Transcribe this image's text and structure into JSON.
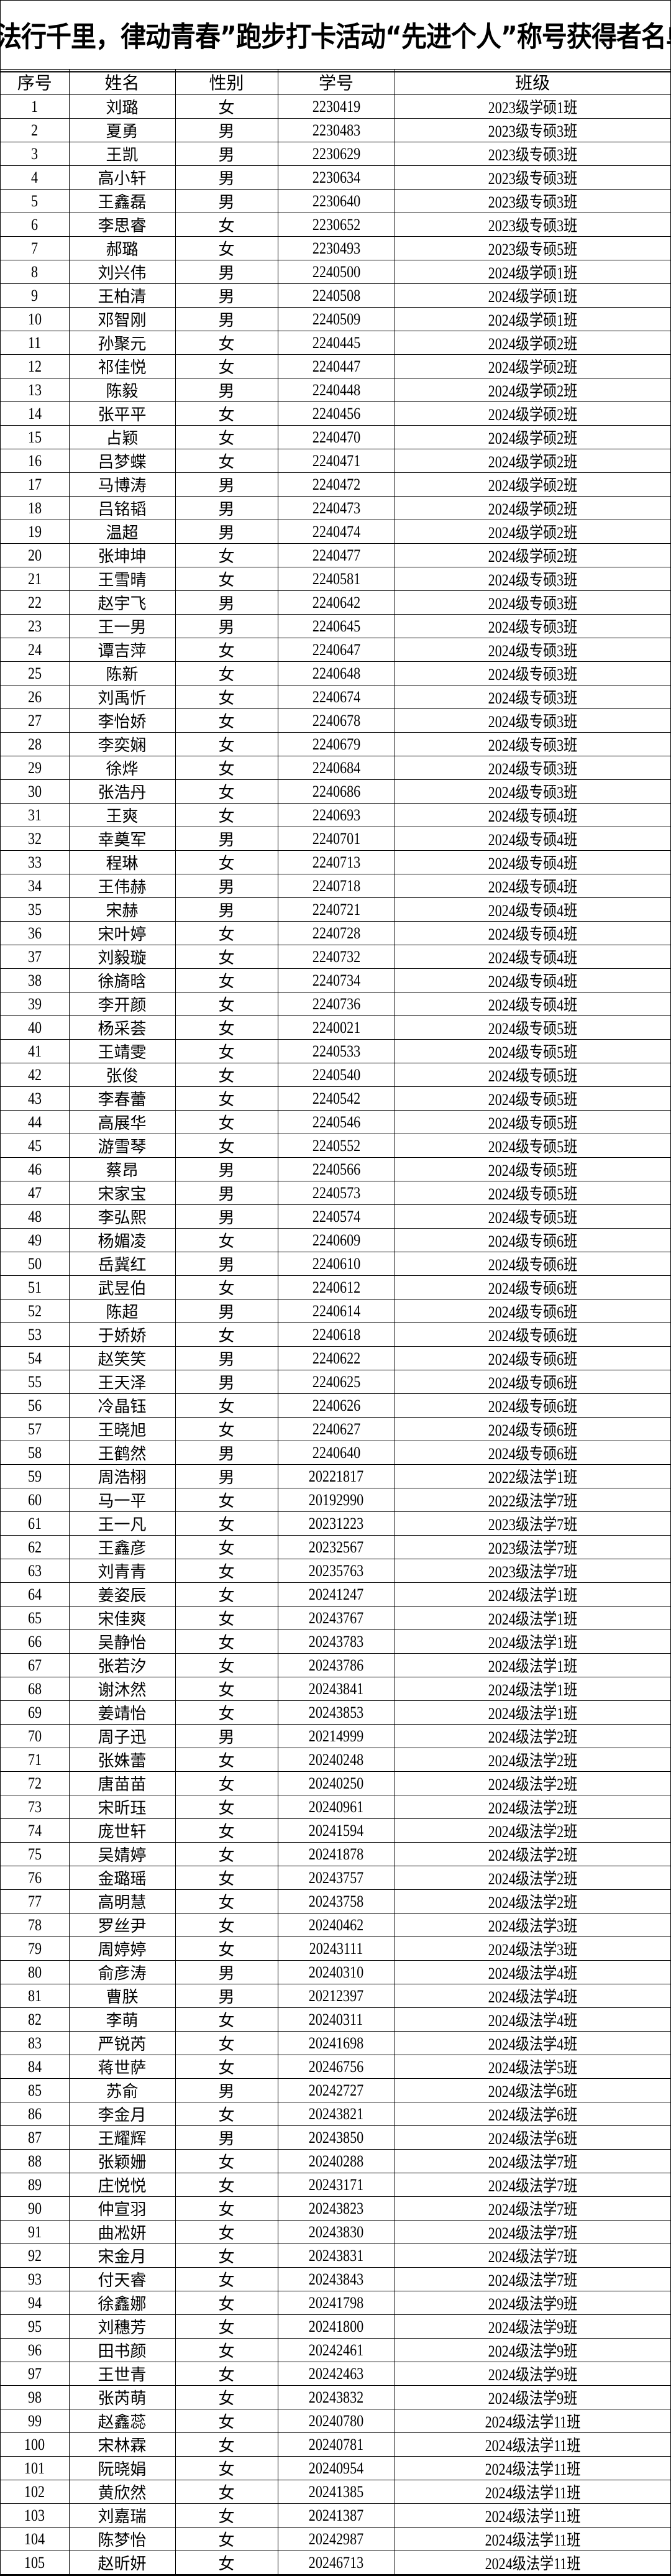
{
  "title": "“法行千里，律动青春”跑步打卡活动“先进个人”称号获得者名单",
  "columns": [
    "序号",
    "姓名",
    "性别",
    "学号",
    "班级"
  ],
  "rows": [
    [
      "1",
      "刘璐",
      "女",
      "2230419",
      "2023级学硕1班"
    ],
    [
      "2",
      "夏勇",
      "男",
      "2230483",
      "2023级专硕3班"
    ],
    [
      "3",
      "王凯",
      "男",
      "2230629",
      "2023级专硕3班"
    ],
    [
      "4",
      "高小轩",
      "男",
      "2230634",
      "2023级专硕3班"
    ],
    [
      "5",
      "王鑫磊",
      "男",
      "2230640",
      "2023级专硕3班"
    ],
    [
      "6",
      "李思睿",
      "女",
      "2230652",
      "2023级专硕3班"
    ],
    [
      "7",
      "郝璐",
      "女",
      "2230493",
      "2023级专硕5班"
    ],
    [
      "8",
      "刘兴伟",
      "男",
      "2240500",
      "2024级学硕1班"
    ],
    [
      "9",
      "王柏清",
      "男",
      "2240508",
      "2024级学硕1班"
    ],
    [
      "10",
      "邓智刚",
      "男",
      "2240509",
      "2024级学硕1班"
    ],
    [
      "11",
      "孙聚元",
      "女",
      "2240445",
      "2024级学硕2班"
    ],
    [
      "12",
      "祁佳悦",
      "女",
      "2240447",
      "2024级学硕2班"
    ],
    [
      "13",
      "陈毅",
      "男",
      "2240448",
      "2024级学硕2班"
    ],
    [
      "14",
      "张平平",
      "女",
      "2240456",
      "2024级学硕2班"
    ],
    [
      "15",
      "占颖",
      "女",
      "2240470",
      "2024级学硕2班"
    ],
    [
      "16",
      "吕梦蝶",
      "女",
      "2240471",
      "2024级学硕2班"
    ],
    [
      "17",
      "马博涛",
      "男",
      "2240472",
      "2024级学硕2班"
    ],
    [
      "18",
      "吕铭韬",
      "男",
      "2240473",
      "2024级学硕2班"
    ],
    [
      "19",
      "温超",
      "男",
      "2240474",
      "2024级学硕2班"
    ],
    [
      "20",
      "张坤坤",
      "女",
      "2240477",
      "2024级学硕2班"
    ],
    [
      "21",
      "王雪晴",
      "女",
      "2240581",
      "2024级专硕3班"
    ],
    [
      "22",
      "赵宇飞",
      "男",
      "2240642",
      "2024级专硕3班"
    ],
    [
      "23",
      "王一男",
      "男",
      "2240645",
      "2024级专硕3班"
    ],
    [
      "24",
      "谭吉萍",
      "女",
      "2240647",
      "2024级专硕3班"
    ],
    [
      "25",
      "陈新",
      "女",
      "2240648",
      "2024级专硕3班"
    ],
    [
      "26",
      "刘禹忻",
      "女",
      "2240674",
      "2024级专硕3班"
    ],
    [
      "27",
      "李怡娇",
      "女",
      "2240678",
      "2024级专硕3班"
    ],
    [
      "28",
      "李奕娴",
      "女",
      "2240679",
      "2024级专硕3班"
    ],
    [
      "29",
      "徐烨",
      "女",
      "2240684",
      "2024级专硕3班"
    ],
    [
      "30",
      "张浩丹",
      "女",
      "2240686",
      "2024级专硕3班"
    ],
    [
      "31",
      "王爽",
      "女",
      "2240693",
      "2024级专硕4班"
    ],
    [
      "32",
      "幸奠军",
      "男",
      "2240701",
      "2024级专硕4班"
    ],
    [
      "33",
      "程琳",
      "女",
      "2240713",
      "2024级专硕4班"
    ],
    [
      "34",
      "王伟赫",
      "男",
      "2240718",
      "2024级专硕4班"
    ],
    [
      "35",
      "宋赫",
      "男",
      "2240721",
      "2024级专硕4班"
    ],
    [
      "36",
      "宋叶婷",
      "女",
      "2240728",
      "2024级专硕4班"
    ],
    [
      "37",
      "刘毅璇",
      "女",
      "2240732",
      "2024级专硕4班"
    ],
    [
      "38",
      "徐旖晗",
      "女",
      "2240734",
      "2024级专硕4班"
    ],
    [
      "39",
      "李开颜",
      "女",
      "2240736",
      "2024级专硕4班"
    ],
    [
      "40",
      "杨采荟",
      "女",
      "2240021",
      "2024级专硕5班"
    ],
    [
      "41",
      "王靖雯",
      "女",
      "2240533",
      "2024级专硕5班"
    ],
    [
      "42",
      "张俊",
      "女",
      "2240540",
      "2024级专硕5班"
    ],
    [
      "43",
      "李春蕾",
      "女",
      "2240542",
      "2024级专硕5班"
    ],
    [
      "44",
      "高展华",
      "女",
      "2240546",
      "2024级专硕5班"
    ],
    [
      "45",
      "游雪琴",
      "女",
      "2240552",
      "2024级专硕5班"
    ],
    [
      "46",
      "蔡昂",
      "男",
      "2240566",
      "2024级专硕5班"
    ],
    [
      "47",
      "宋家宝",
      "男",
      "2240573",
      "2024级专硕5班"
    ],
    [
      "48",
      "李弘熙",
      "男",
      "2240574",
      "2024级专硕5班"
    ],
    [
      "49",
      "杨媚凌",
      "女",
      "2240609",
      "2024级专硕6班"
    ],
    [
      "50",
      "岳冀红",
      "男",
      "2240610",
      "2024级专硕6班"
    ],
    [
      "51",
      "武昱伯",
      "女",
      "2240612",
      "2024级专硕6班"
    ],
    [
      "52",
      "陈超",
      "男",
      "2240614",
      "2024级专硕6班"
    ],
    [
      "53",
      "于娇娇",
      "女",
      "2240618",
      "2024级专硕6班"
    ],
    [
      "54",
      "赵笑笑",
      "男",
      "2240622",
      "2024级专硕6班"
    ],
    [
      "55",
      "王天泽",
      "男",
      "2240625",
      "2024级专硕6班"
    ],
    [
      "56",
      "冷晶钰",
      "女",
      "2240626",
      "2024级专硕6班"
    ],
    [
      "57",
      "王晓旭",
      "女",
      "2240627",
      "2024级专硕6班"
    ],
    [
      "58",
      "王鹤然",
      "男",
      "2240640",
      "2024级专硕6班"
    ],
    [
      "59",
      "周浩栩",
      "男",
      "20221817",
      "2022级法学1班"
    ],
    [
      "60",
      "马一平",
      "女",
      "20192990",
      "2022级法学7班"
    ],
    [
      "61",
      "王一凡",
      "女",
      "20231223",
      "2023级法学7班"
    ],
    [
      "62",
      "王鑫彦",
      "女",
      "20232567",
      "2023级法学7班"
    ],
    [
      "63",
      "刘青青",
      "女",
      "20235763",
      "2023级法学7班"
    ],
    [
      "64",
      "姜姿辰",
      "女",
      "20241247",
      "2024级法学1班"
    ],
    [
      "65",
      "宋佳爽",
      "女",
      "20243767",
      "2024级法学1班"
    ],
    [
      "66",
      "吴静怡",
      "女",
      "20243783",
      "2024级法学1班"
    ],
    [
      "67",
      "张若汐",
      "女",
      "20243786",
      "2024级法学1班"
    ],
    [
      "68",
      "谢沐然",
      "女",
      "20243841",
      "2024级法学1班"
    ],
    [
      "69",
      "姜靖怡",
      "女",
      "20243853",
      "2024级法学1班"
    ],
    [
      "70",
      "周子迅",
      "男",
      "20214999",
      "2024级法学2班"
    ],
    [
      "71",
      "张姝蕾",
      "女",
      "20240248",
      "2024级法学2班"
    ],
    [
      "72",
      "唐苗苗",
      "女",
      "20240250",
      "2024级法学2班"
    ],
    [
      "73",
      "宋昕珏",
      "女",
      "20240961",
      "2024级法学2班"
    ],
    [
      "74",
      "庞世轩",
      "女",
      "20241594",
      "2024级法学2班"
    ],
    [
      "75",
      "吴婧婷",
      "女",
      "20241878",
      "2024级法学2班"
    ],
    [
      "76",
      "金璐瑶",
      "女",
      "20243757",
      "2024级法学2班"
    ],
    [
      "77",
      "高明慧",
      "女",
      "20243758",
      "2024级法学2班"
    ],
    [
      "78",
      "罗丝尹",
      "女",
      "20240462",
      "2024级法学3班"
    ],
    [
      "79",
      "周婷婷",
      "女",
      "20243111",
      "2024级法学3班"
    ],
    [
      "80",
      "俞彦涛",
      "男",
      "20240310",
      "2024级法学4班"
    ],
    [
      "81",
      "曹朕",
      "男",
      "20212397",
      "2024级法学4班"
    ],
    [
      "82",
      "李萌",
      "女",
      "20240311",
      "2024级法学4班"
    ],
    [
      "83",
      "严锐芮",
      "女",
      "20241698",
      "2024级法学4班"
    ],
    [
      "84",
      "蒋世萨",
      "女",
      "20246756",
      "2024级法学5班"
    ],
    [
      "85",
      "苏俞",
      "男",
      "20242727",
      "2024级法学6班"
    ],
    [
      "86",
      "李金月",
      "女",
      "20243821",
      "2024级法学6班"
    ],
    [
      "87",
      "王耀辉",
      "男",
      "20243850",
      "2024级法学6班"
    ],
    [
      "88",
      "张颖姗",
      "女",
      "20240288",
      "2024级法学7班"
    ],
    [
      "89",
      "庄悦悦",
      "女",
      "20243171",
      "2024级法学7班"
    ],
    [
      "90",
      "仲宣羽",
      "女",
      "20243823",
      "2024级法学7班"
    ],
    [
      "91",
      "曲凇妍",
      "女",
      "20243830",
      "2024级法学7班"
    ],
    [
      "92",
      "宋金月",
      "女",
      "20243831",
      "2024级法学7班"
    ],
    [
      "93",
      "付天睿",
      "女",
      "20243843",
      "2024级法学7班"
    ],
    [
      "94",
      "徐鑫娜",
      "女",
      "20241798",
      "2024级法学9班"
    ],
    [
      "95",
      "刘穗芳",
      "女",
      "20241800",
      "2024级法学9班"
    ],
    [
      "96",
      "田书颜",
      "女",
      "20242461",
      "2024级法学9班"
    ],
    [
      "97",
      "王世青",
      "女",
      "20242463",
      "2024级法学9班"
    ],
    [
      "98",
      "张芮萌",
      "女",
      "20243832",
      "2024级法学9班"
    ],
    [
      "99",
      "赵鑫蕊",
      "女",
      "20240780",
      "2024级法学11班"
    ],
    [
      "100",
      "宋林霖",
      "女",
      "20240781",
      "2024级法学11班"
    ],
    [
      "101",
      "阮晓娟",
      "女",
      "20240954",
      "2024级法学11班"
    ],
    [
      "102",
      "黄欣然",
      "女",
      "20241385",
      "2024级法学11班"
    ],
    [
      "103",
      "刘嘉瑞",
      "女",
      "20241387",
      "2024级法学11班"
    ],
    [
      "104",
      "陈梦怡",
      "女",
      "20242987",
      "2024级法学11班"
    ],
    [
      "105",
      "赵昕妍",
      "女",
      "20246713",
      "2024级法学11班"
    ]
  ]
}
